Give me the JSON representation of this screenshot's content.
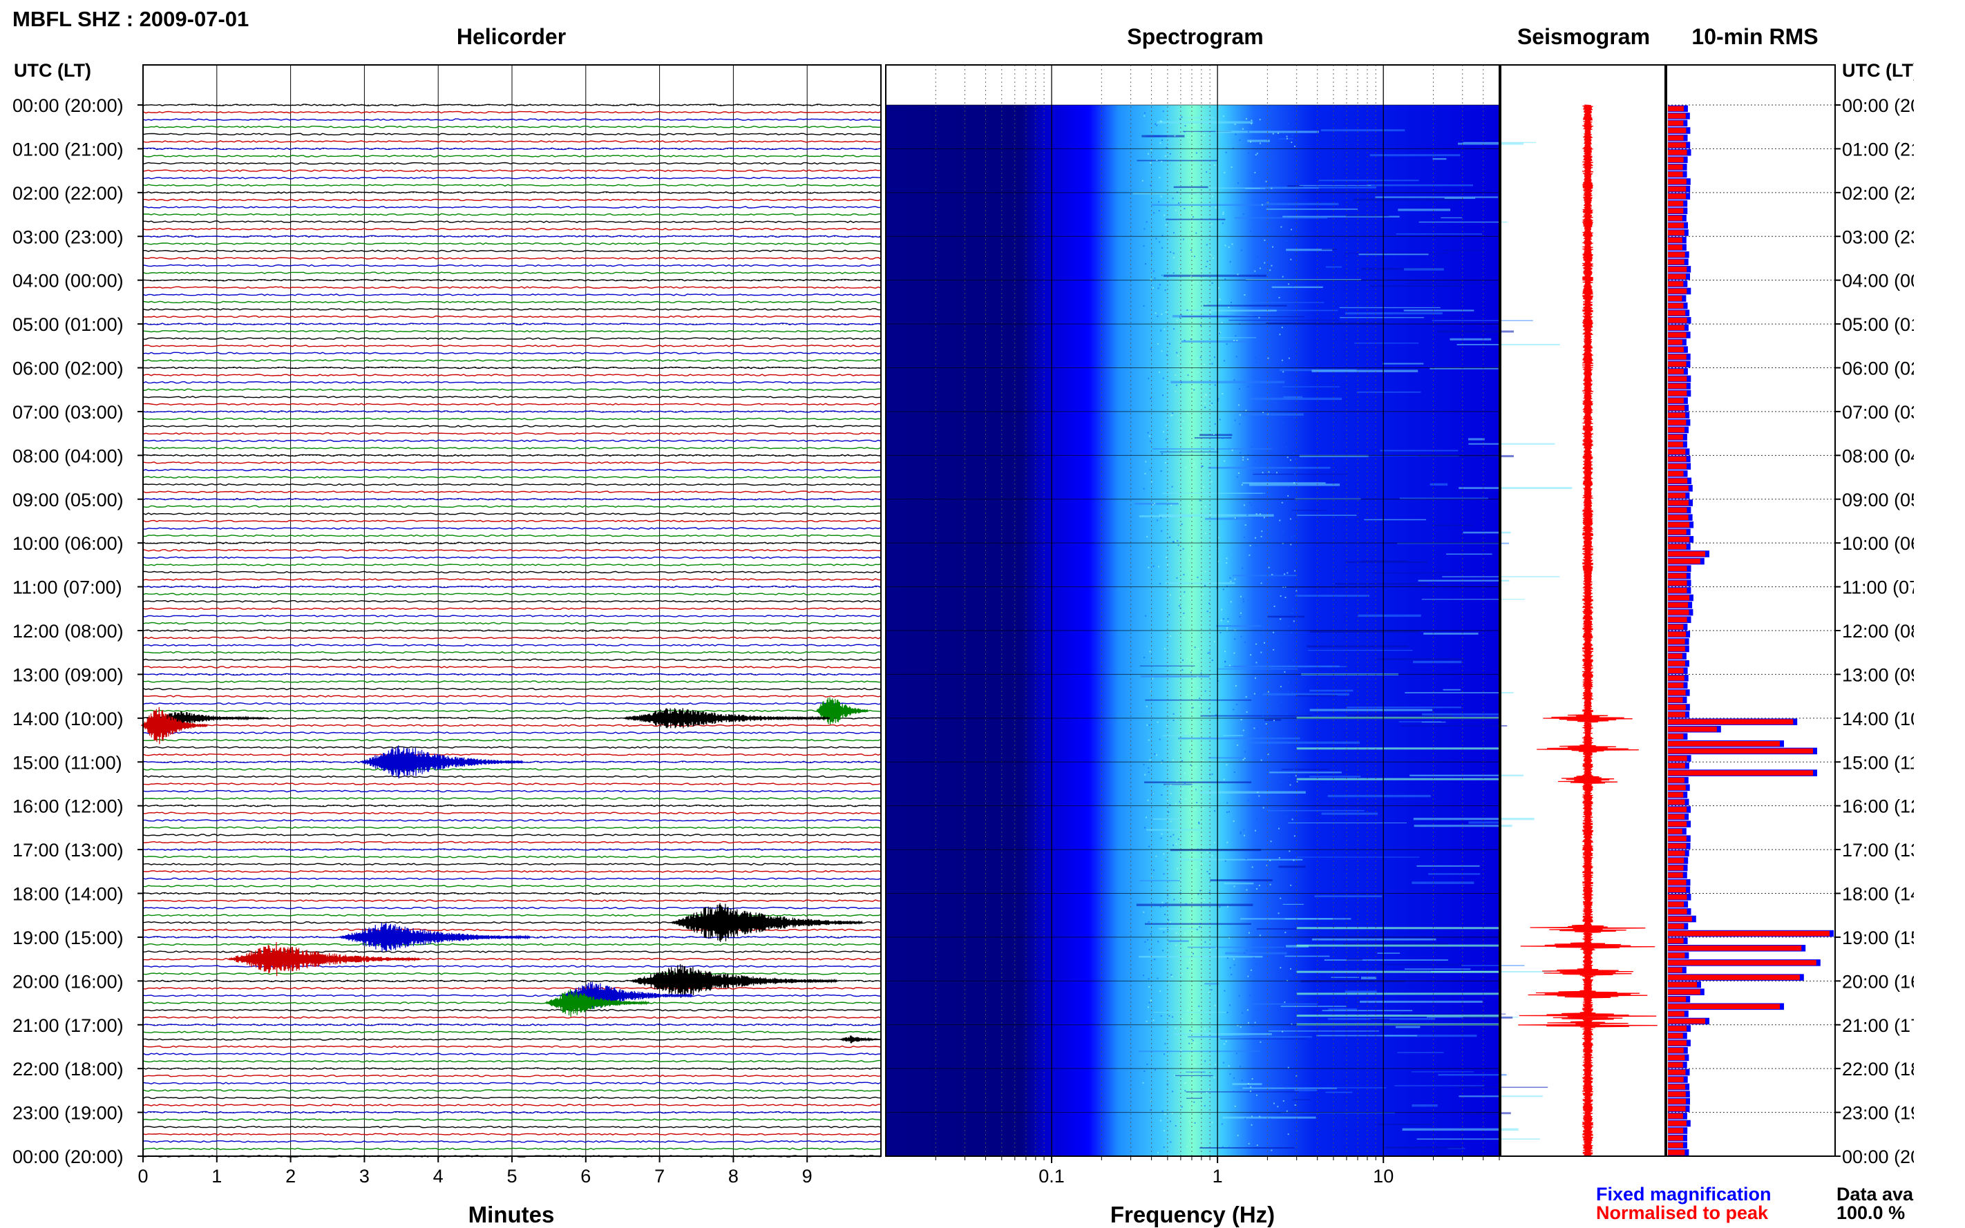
{
  "figure": {
    "station_title": "MBFL SHZ : 2009-07-01",
    "axis_left_title": "UTC (LT)",
    "axis_right_title": "UTC (LT)",
    "legend": {
      "fixed": "Fixed magnification",
      "normalised": "Normalised to peak",
      "fixed_color": "#0000ff",
      "normalised_color": "#ff0000"
    },
    "availability": {
      "label": "Data availability",
      "value": "100.0 %"
    }
  },
  "chart_data": [
    {
      "type": "line",
      "name": "helicorder",
      "title": "Helicorder",
      "xlabel": "Minutes",
      "ylabel": "UTC (LT)",
      "xlim": [
        0,
        10
      ],
      "x_ticks": [
        0,
        1,
        2,
        3,
        4,
        5,
        6,
        7,
        8,
        9
      ],
      "hour_labels": [
        "00:00 (20:00)",
        "01:00 (21:00)",
        "02:00 (22:00)",
        "03:00 (23:00)",
        "04:00 (00:00)",
        "05:00 (01:00)",
        "06:00 (02:00)",
        "07:00 (03:00)",
        "08:00 (04:00)",
        "09:00 (05:00)",
        "10:00 (06:00)",
        "11:00 (07:00)",
        "12:00 (08:00)",
        "13:00 (09:00)",
        "14:00 (10:00)",
        "15:00 (11:00)",
        "16:00 (12:00)",
        "17:00 (13:00)",
        "18:00 (14:00)",
        "19:00 (15:00)",
        "20:00 (16:00)",
        "21:00 (17:00)",
        "22:00 (18:00)",
        "23:00 (19:00)",
        "00:00 (20:00)"
      ],
      "rows_per_hour": 6,
      "trace_colors": [
        "#000000",
        "#cc0000",
        "#0000cc",
        "#008800"
      ],
      "grid": true,
      "events": [
        {
          "hour": 14,
          "row": 0,
          "minute": 0.5,
          "duration": 1.6,
          "amplitude": 0.35
        },
        {
          "hour": 13,
          "row": 5,
          "minute": 9.3,
          "duration": 0.7,
          "amplitude": 1.0
        },
        {
          "hour": 14,
          "row": 0,
          "minute": 7.2,
          "duration": 2.8,
          "amplitude": 0.55
        },
        {
          "hour": 14,
          "row": 1,
          "minute": 0.2,
          "duration": 0.9,
          "amplitude": 1.0
        },
        {
          "hour": 15,
          "row": 0,
          "minute": 3.5,
          "duration": 2.2,
          "amplitude": 0.9
        },
        {
          "hour": 18,
          "row": 4,
          "minute": 7.8,
          "duration": 2.6,
          "amplitude": 1.0
        },
        {
          "hour": 19,
          "row": 0,
          "minute": 3.3,
          "duration": 2.6,
          "amplitude": 0.75
        },
        {
          "hour": 19,
          "row": 3,
          "minute": 1.8,
          "duration": 2.6,
          "amplitude": 0.8
        },
        {
          "hour": 20,
          "row": 0,
          "minute": 7.3,
          "duration": 2.8,
          "amplitude": 0.8
        },
        {
          "hour": 20,
          "row": 2,
          "minute": 6.1,
          "duration": 1.8,
          "amplitude": 0.7
        },
        {
          "hour": 20,
          "row": 3,
          "minute": 5.8,
          "duration": 1.4,
          "amplitude": 0.7
        },
        {
          "hour": 21,
          "row": 2,
          "minute": 9.6,
          "duration": 0.6,
          "amplitude": 0.2
        }
      ]
    },
    {
      "type": "heatmap",
      "name": "spectrogram",
      "title": "Spectrogram",
      "xlabel": "Frequency (Hz)",
      "x_scale": "log",
      "xlim": [
        0.01,
        50
      ],
      "x_tick_labels": [
        {
          "value": 0.1,
          "label": "0.1"
        },
        {
          "value": 1,
          "label": "1"
        },
        {
          "value": 10,
          "label": "10"
        }
      ],
      "ylim_hours": [
        0,
        24
      ],
      "colormap": [
        "#00008b",
        "#0000ff",
        "#1e90ff",
        "#00ffff",
        "#7fffd4"
      ],
      "peak_frequency_hz": 1,
      "grid": true
    },
    {
      "type": "line",
      "name": "seismogram",
      "title": "Seismogram",
      "ylim_hours": [
        0,
        24
      ],
      "color": "#ff0000",
      "bursts_hours": [
        14.0,
        14.7,
        15.4,
        18.8,
        19.2,
        19.8,
        20.3,
        20.8,
        21.0
      ]
    },
    {
      "type": "bar",
      "name": "rms",
      "title": "10-min RMS",
      "orientation": "horizontal",
      "ylim_hours": [
        0,
        24
      ],
      "bins_per_hour": 6,
      "series": [
        {
          "name": "Fixed magnification",
          "color": "#0000ff"
        },
        {
          "name": "Normalised to peak",
          "color": "#ff0000"
        }
      ],
      "baseline_level": 0.11,
      "peaks": [
        {
          "bin": 61,
          "value": 0.25
        },
        {
          "bin": 62,
          "value": 0.22
        },
        {
          "bin": 84,
          "value": 0.78
        },
        {
          "bin": 85,
          "value": 0.32
        },
        {
          "bin": 87,
          "value": 0.7
        },
        {
          "bin": 88,
          "value": 0.9
        },
        {
          "bin": 91,
          "value": 0.9
        },
        {
          "bin": 111,
          "value": 0.17
        },
        {
          "bin": 113,
          "value": 1.0
        },
        {
          "bin": 115,
          "value": 0.83
        },
        {
          "bin": 117,
          "value": 0.92
        },
        {
          "bin": 119,
          "value": 0.82
        },
        {
          "bin": 120,
          "value": 0.2
        },
        {
          "bin": 121,
          "value": 0.22
        },
        {
          "bin": 123,
          "value": 0.7
        },
        {
          "bin": 125,
          "value": 0.25
        }
      ]
    }
  ]
}
